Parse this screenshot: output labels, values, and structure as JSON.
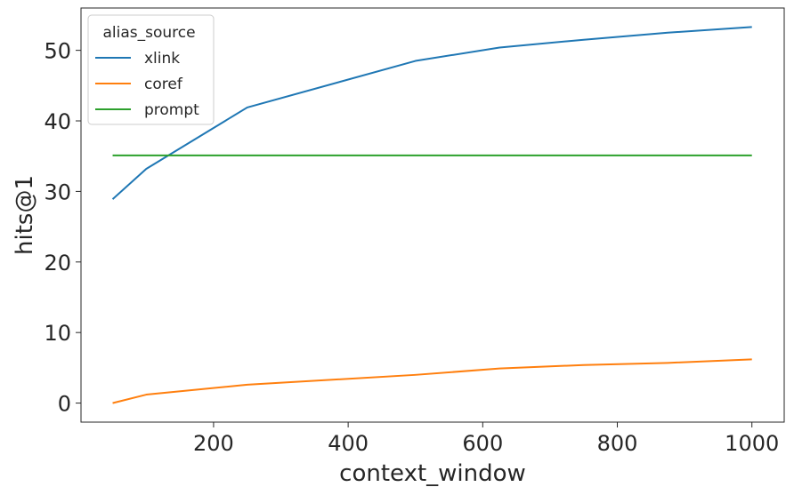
{
  "chart_data": {
    "type": "line",
    "xlabel": "context_window",
    "ylabel": "hits@1",
    "xlim": [
      3,
      1048
    ],
    "ylim": [
      -2.7,
      56
    ],
    "xticks": [
      200,
      400,
      600,
      800,
      1000
    ],
    "yticks": [
      0,
      10,
      20,
      30,
      40,
      50
    ],
    "legend": {
      "title": "alias_source",
      "position": "top-left"
    },
    "series": [
      {
        "name": "xlink",
        "color": "#1f77b4",
        "x": [
          50,
          100,
          250,
          500,
          625,
          750,
          875,
          1000
        ],
        "y": [
          28.9,
          33.2,
          41.9,
          48.5,
          50.4,
          51.5,
          52.5,
          53.3
        ]
      },
      {
        "name": "coref",
        "color": "#ff7f0e",
        "x": [
          50,
          100,
          250,
          500,
          625,
          750,
          875,
          1000
        ],
        "y": [
          0.0,
          1.2,
          2.6,
          4.0,
          4.9,
          5.4,
          5.7,
          6.2
        ]
      },
      {
        "name": "prompt",
        "color": "#2ca02c",
        "x": [
          50,
          1000
        ],
        "y": [
          35.1,
          35.1
        ]
      }
    ]
  }
}
